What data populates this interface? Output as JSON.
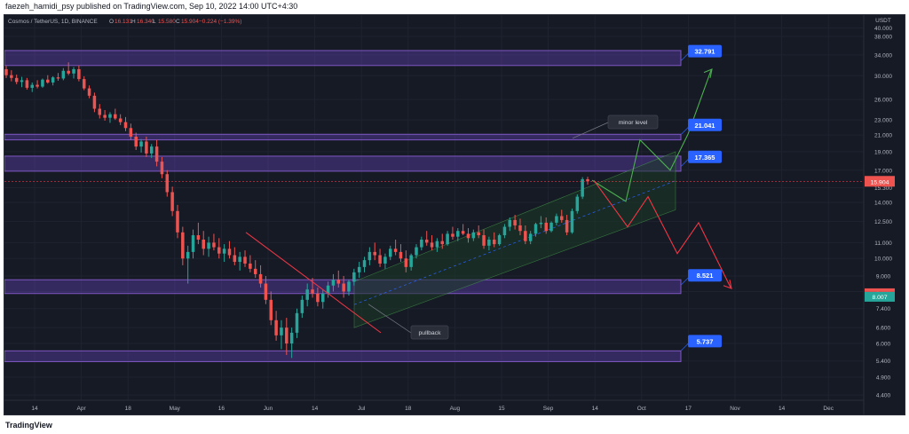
{
  "header": {
    "publisher": "faezeh_hamidi_psy published on TradingView.com, Sep 10, 2022 14:00 UTC+4:30"
  },
  "legend": {
    "symbol": "Cosmos / TetherUS, 1D, BINANCE",
    "o_label": "O",
    "o_value": "16.131",
    "h_label": "H",
    "h_value": "16.340",
    "l_label": "L",
    "l_value": "15.580",
    "c_label": "C",
    "c_value": "15.904",
    "change": "−0.224 (−1.39%)"
  },
  "footer": {
    "logo": "TradingView"
  },
  "colors": {
    "background": "#161a25",
    "grid": "#1f2330",
    "up": "#26a69a",
    "down": "#ef5350",
    "zone_fill": "#5b3fa8",
    "zone_border": "#7e57c2",
    "tag": "#2962ff",
    "projection_up": "#4caf50",
    "projection_down": "#f23645",
    "channel": "#4caf50"
  },
  "chart_data": {
    "type": "candlestick",
    "currency_label": "USDT",
    "y_scale": "log",
    "y_ticks": [
      "38.000",
      "34.000",
      "30.000",
      "26.000",
      "23.000",
      "21.000",
      "19.000",
      "17.000",
      "15.300",
      "14.000",
      "12.500",
      "11.000",
      "10.000",
      "9.000",
      "8.200",
      "7.400",
      "6.600",
      "6.000",
      "5.400",
      "4.900",
      "4.400",
      "40.000"
    ],
    "x_ticks": [
      "14",
      "Apr",
      "18",
      "May",
      "16",
      "Jun",
      "14",
      "Jul",
      "18",
      "Aug",
      "15",
      "Sep",
      "14",
      "Oct",
      "17",
      "Nov",
      "14",
      "Dec"
    ],
    "last_price": "15.904",
    "secondary_price": "8.007",
    "levels": [
      {
        "label": "32.791",
        "value": 32.791
      },
      {
        "label": "21.041",
        "value": 21.041
      },
      {
        "label": "17.365",
        "value": 17.365
      },
      {
        "label": "8.521",
        "value": 8.521
      },
      {
        "label": "5.737",
        "value": 5.737
      }
    ],
    "zones": [
      {
        "low": 31.9,
        "high": 34.9
      },
      {
        "low": 20.4,
        "high": 21.1
      },
      {
        "low": 16.9,
        "high": 18.5
      },
      {
        "low": 8.1,
        "high": 8.8
      },
      {
        "low": 5.38,
        "high": 5.74
      }
    ],
    "annotations": [
      {
        "text": "minor level"
      },
      {
        "text": "pullback"
      }
    ],
    "candles": [
      [
        31.2,
        31.8,
        29.6,
        30.1
      ],
      [
        30.1,
        31.0,
        29.0,
        29.6
      ],
      [
        29.6,
        30.2,
        28.5,
        28.9
      ],
      [
        28.9,
        29.8,
        28.0,
        29.2
      ],
      [
        29.2,
        29.6,
        27.6,
        27.9
      ],
      [
        27.9,
        28.8,
        27.2,
        28.4
      ],
      [
        28.4,
        29.2,
        27.8,
        28.1
      ],
      [
        28.1,
        29.5,
        27.9,
        29.3
      ],
      [
        29.3,
        30.1,
        28.6,
        28.8
      ],
      [
        28.8,
        29.9,
        28.3,
        29.7
      ],
      [
        29.7,
        30.5,
        29.1,
        29.5
      ],
      [
        29.5,
        31.4,
        29.2,
        30.9
      ],
      [
        30.9,
        32.5,
        30.1,
        30.4
      ],
      [
        30.4,
        31.6,
        29.5,
        31.2
      ],
      [
        31.2,
        31.9,
        29.0,
        29.4
      ],
      [
        29.4,
        29.9,
        27.5,
        27.8
      ],
      [
        27.8,
        28.3,
        26.2,
        26.6
      ],
      [
        26.6,
        27.1,
        24.1,
        24.6
      ],
      [
        24.6,
        25.3,
        23.2,
        23.7
      ],
      [
        23.7,
        24.4,
        22.9,
        23.3
      ],
      [
        23.3,
        24.1,
        22.6,
        23.8
      ],
      [
        23.8,
        24.6,
        23.0,
        23.2
      ],
      [
        23.2,
        23.8,
        22.3,
        22.7
      ],
      [
        22.7,
        23.4,
        21.5,
        21.9
      ],
      [
        21.9,
        22.5,
        20.4,
        20.8
      ],
      [
        20.8,
        21.3,
        19.2,
        19.6
      ],
      [
        19.6,
        20.5,
        18.9,
        20.2
      ],
      [
        20.2,
        20.8,
        18.4,
        18.8
      ],
      [
        18.8,
        19.9,
        18.3,
        19.6
      ],
      [
        19.6,
        20.4,
        17.4,
        17.9
      ],
      [
        17.9,
        18.4,
        16.2,
        16.6
      ],
      [
        16.6,
        17.0,
        14.5,
        14.9
      ],
      [
        14.9,
        15.4,
        12.9,
        13.3
      ],
      [
        13.3,
        13.8,
        11.3,
        11.7
      ],
      [
        11.7,
        12.1,
        9.6,
        10.0
      ],
      [
        10.0,
        10.8,
        8.6,
        10.4
      ],
      [
        10.4,
        11.9,
        10.0,
        11.5
      ],
      [
        11.5,
        12.4,
        10.9,
        11.2
      ],
      [
        11.2,
        11.8,
        10.2,
        10.6
      ],
      [
        10.6,
        11.4,
        10.1,
        11.0
      ],
      [
        11.0,
        11.6,
        10.5,
        10.7
      ],
      [
        10.7,
        11.3,
        10.0,
        10.3
      ],
      [
        10.3,
        10.9,
        9.8,
        10.6
      ],
      [
        10.6,
        11.1,
        10.0,
        10.2
      ],
      [
        10.2,
        10.7,
        9.6,
        9.8
      ],
      [
        9.8,
        10.4,
        9.3,
        10.1
      ],
      [
        10.1,
        10.5,
        9.5,
        9.7
      ],
      [
        9.7,
        10.2,
        9.2,
        9.4
      ],
      [
        9.4,
        9.9,
        8.9,
        9.1
      ],
      [
        9.1,
        9.6,
        8.4,
        8.6
      ],
      [
        8.6,
        9.0,
        7.6,
        7.8
      ],
      [
        7.8,
        8.2,
        6.7,
        6.9
      ],
      [
        6.9,
        7.3,
        6.1,
        6.3
      ],
      [
        6.3,
        6.9,
        5.8,
        6.6
      ],
      [
        6.6,
        7.0,
        5.6,
        6.0
      ],
      [
        6.0,
        6.6,
        5.5,
        6.4
      ],
      [
        6.4,
        7.4,
        6.2,
        7.2
      ],
      [
        7.2,
        8.0,
        7.0,
        7.8
      ],
      [
        7.8,
        8.6,
        7.5,
        8.3
      ],
      [
        8.3,
        8.9,
        7.9,
        8.1
      ],
      [
        8.1,
        8.4,
        7.5,
        7.7
      ],
      [
        7.7,
        8.3,
        7.4,
        8.1
      ],
      [
        8.1,
        8.7,
        7.9,
        8.5
      ],
      [
        8.5,
        9.1,
        8.2,
        8.8
      ],
      [
        8.8,
        9.3,
        8.4,
        8.6
      ],
      [
        8.6,
        9.0,
        7.9,
        8.2
      ],
      [
        8.2,
        8.8,
        8.0,
        8.7
      ],
      [
        8.7,
        9.4,
        8.5,
        9.2
      ],
      [
        9.2,
        9.8,
        8.9,
        9.5
      ],
      [
        9.5,
        10.1,
        9.2,
        9.9
      ],
      [
        9.9,
        10.7,
        9.6,
        10.4
      ],
      [
        10.4,
        11.0,
        9.9,
        10.2
      ],
      [
        10.2,
        10.6,
        9.5,
        9.7
      ],
      [
        9.7,
        10.3,
        9.4,
        10.1
      ],
      [
        10.1,
        10.8,
        9.9,
        10.6
      ],
      [
        10.6,
        11.2,
        10.2,
        10.4
      ],
      [
        10.4,
        10.9,
        9.8,
        10.0
      ],
      [
        10.0,
        10.5,
        9.2,
        9.5
      ],
      [
        9.5,
        10.3,
        9.3,
        10.2
      ],
      [
        10.2,
        10.9,
        10.0,
        10.7
      ],
      [
        10.7,
        11.4,
        10.5,
        11.2
      ],
      [
        11.2,
        11.8,
        10.8,
        11.0
      ],
      [
        11.0,
        11.5,
        10.5,
        10.7
      ],
      [
        10.7,
        11.3,
        10.4,
        11.1
      ],
      [
        11.1,
        11.6,
        10.6,
        10.9
      ],
      [
        10.9,
        11.8,
        10.8,
        11.6
      ],
      [
        11.6,
        12.1,
        11.2,
        11.4
      ],
      [
        11.4,
        12.0,
        11.1,
        11.8
      ],
      [
        11.8,
        12.3,
        11.5,
        11.6
      ],
      [
        11.6,
        12.0,
        11.0,
        11.3
      ],
      [
        11.3,
        11.9,
        11.1,
        11.7
      ],
      [
        11.7,
        12.2,
        11.3,
        11.5
      ],
      [
        11.5,
        11.9,
        10.6,
        10.8
      ],
      [
        10.8,
        11.4,
        10.5,
        11.2
      ],
      [
        11.2,
        11.7,
        10.7,
        10.9
      ],
      [
        10.9,
        11.6,
        10.8,
        11.5
      ],
      [
        11.5,
        12.3,
        11.3,
        12.1
      ],
      [
        12.1,
        12.8,
        11.8,
        12.6
      ],
      [
        12.6,
        13.0,
        11.9,
        12.2
      ],
      [
        12.2,
        12.7,
        11.5,
        11.8
      ],
      [
        11.8,
        12.2,
        10.9,
        11.1
      ],
      [
        11.1,
        11.8,
        10.9,
        11.6
      ],
      [
        11.6,
        12.4,
        11.4,
        12.3
      ],
      [
        12.3,
        12.9,
        12.0,
        12.4
      ],
      [
        12.4,
        12.8,
        11.6,
        11.8
      ],
      [
        11.8,
        12.5,
        11.7,
        12.4
      ],
      [
        12.4,
        13.1,
        12.2,
        12.9
      ],
      [
        12.9,
        13.4,
        12.4,
        12.6
      ],
      [
        12.6,
        13.0,
        11.5,
        11.7
      ],
      [
        11.7,
        13.5,
        11.6,
        13.3
      ],
      [
        13.3,
        14.7,
        13.1,
        14.5
      ],
      [
        14.5,
        16.3,
        14.3,
        16.1
      ],
      [
        16.1,
        16.34,
        15.58,
        15.9
      ]
    ]
  }
}
